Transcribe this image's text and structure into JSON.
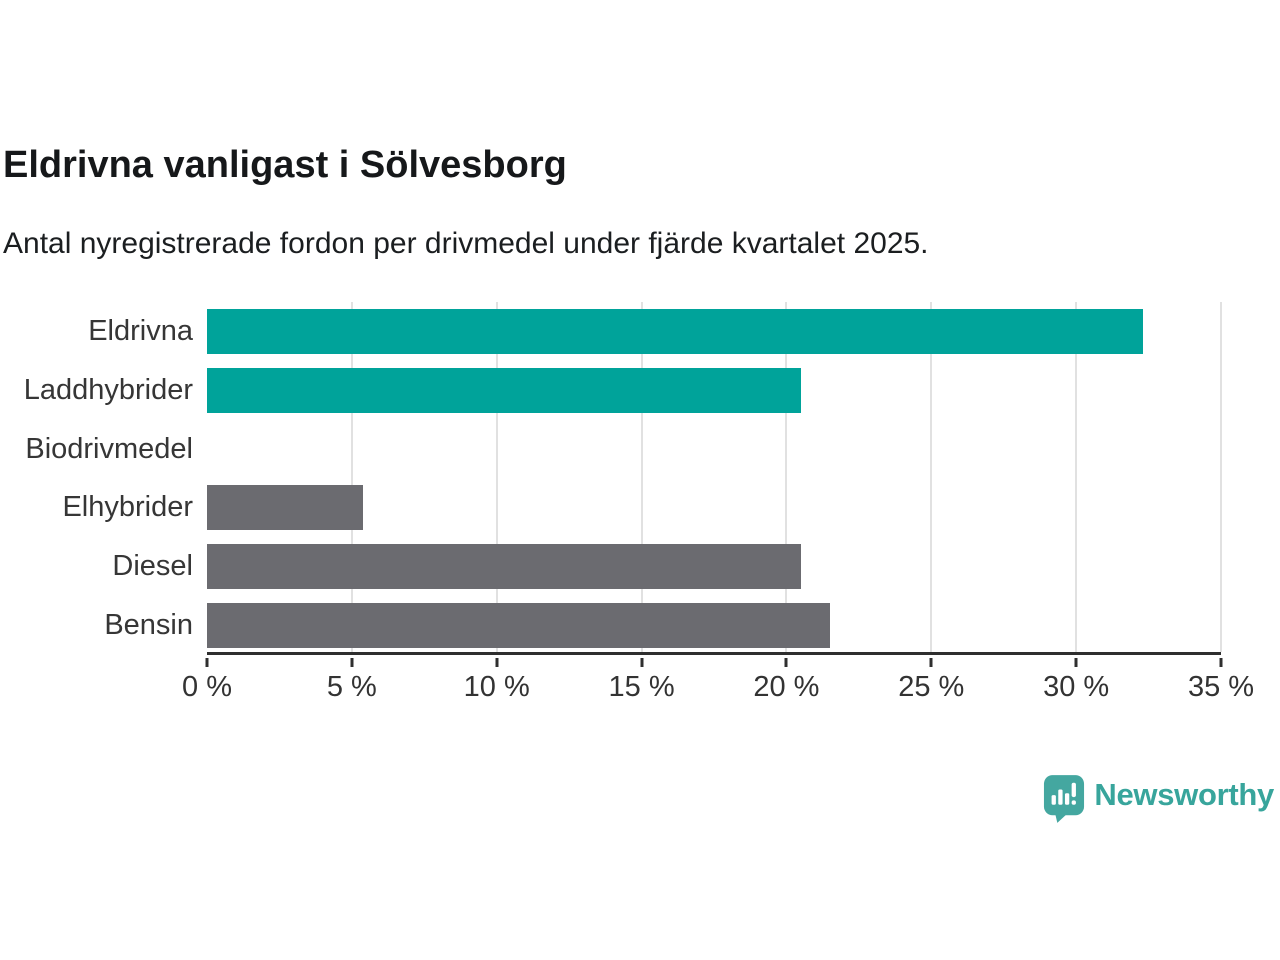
{
  "header": {
    "title": "Eldrivna vanligast i Sölvesborg",
    "subtitle": "Antal nyregistrerade fordon per drivmedel under fjärde kvartalet 2025."
  },
  "chart_data": {
    "type": "bar",
    "orientation": "horizontal",
    "title": "Eldrivna vanligast i Sölvesborg",
    "subtitle": "Antal nyregistrerade fordon per drivmedel under fjärde kvartalet 2025.",
    "categories": [
      "Eldrivna",
      "Laddhybrider",
      "Biodrivmedel",
      "Elhybrider",
      "Diesel",
      "Bensin"
    ],
    "values": [
      32.3,
      20.5,
      0,
      5.4,
      20.5,
      21.5
    ],
    "unit": "%",
    "xlim": [
      0,
      35
    ],
    "x_tick_step": 5,
    "x_ticks": [
      "0 %",
      "5 %",
      "10 %",
      "15 %",
      "20 %",
      "25 %",
      "30 %",
      "35 %"
    ],
    "bar_colors": [
      "#00a39a",
      "#00a39a",
      "#00a39a",
      "#6b6b70",
      "#6b6b70",
      "#6b6b70"
    ],
    "grid": "vertical",
    "legend": "none",
    "colors": {
      "teal_bar": "#00a39a",
      "gray_bar": "#6b6b70",
      "gridline": "#e1e1e1",
      "axis_line": "#2f2f2f",
      "label_text": "#363636"
    }
  },
  "branding": {
    "logo_text": "Newsworthy",
    "logo_icon": "newsworthy-chart-bubble-icon",
    "logo_color": "#44a7a0",
    "wordmark_color": "#38a59c"
  }
}
